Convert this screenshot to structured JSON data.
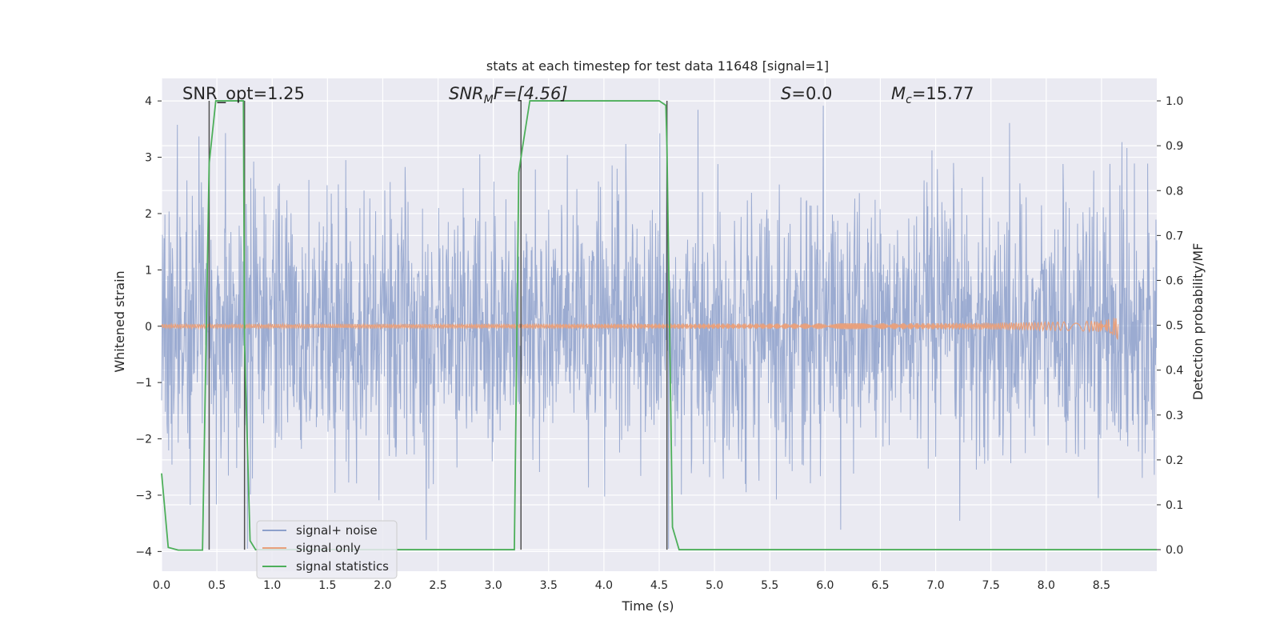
{
  "chart_data": {
    "type": "line",
    "title": "stats at each timestep for test data 11648 [signal=1]",
    "xlabel": "Time (s)",
    "ylabel": "Whitened strain",
    "y2label": "Detection probability/MF",
    "xlim": [
      0.0,
      9.0
    ],
    "ylim": [
      -4.35,
      4.4
    ],
    "y2lim": [
      -0.048,
      1.05
    ],
    "xticks": [
      "0.0",
      "0.5",
      "1.0",
      "1.5",
      "2.0",
      "2.5",
      "3.0",
      "3.5",
      "4.0",
      "4.5",
      "5.0",
      "5.5",
      "6.0",
      "6.5",
      "7.0",
      "7.5",
      "8.0",
      "8.5"
    ],
    "yticks": [
      "4",
      "3",
      "2",
      "1",
      "0",
      "−1",
      "−2",
      "−3",
      "−4"
    ],
    "y2ticks": [
      "1.0",
      "0.9",
      "0.8",
      "0.7",
      "0.6",
      "0.5",
      "0.4",
      "0.3",
      "0.2",
      "0.1",
      "0.0"
    ],
    "grid": true,
    "legend_position": "lower-left",
    "annotations": {
      "snr_opt": "SNR_opt=1.25",
      "snr_mf": "SNR",
      "snr_mf_sub": "M",
      "snr_mf_rest": "F=[4.56]",
      "s_stat": "S",
      "s_stat_rest": "=0.0",
      "mc": "M",
      "mc_sub": "c",
      "mc_rest": "=15.77"
    },
    "series": [
      {
        "name": "signal+ noise",
        "color": "#8da0cb",
        "description_values": "whitened strain noise, approx within ±2.3 with spikes to ±4"
      },
      {
        "name": "signal only",
        "color": "#e8a07c",
        "chirp_end_time": 8.65,
        "chirp_peak_amplitude": 0.35
      },
      {
        "name": "signal statistics",
        "color": "#4daf5a",
        "axis": "right",
        "x": [
          0.0,
          0.06,
          0.15,
          0.37,
          0.43,
          0.49,
          0.54,
          0.7,
          0.74,
          0.75,
          0.8,
          0.85,
          0.9,
          1.5,
          2.5,
          3.19,
          3.23,
          3.26,
          3.33,
          3.4,
          4.0,
          4.5,
          4.56,
          4.57,
          4.62,
          4.68,
          4.75,
          5.0,
          6.0,
          7.0,
          8.0,
          9.0
        ],
        "y": [
          0.17,
          0.005,
          -0.001,
          -0.001,
          0.86,
          1.0,
          1.0,
          1.0,
          1.0,
          0.46,
          0.02,
          0.0,
          0.0,
          0.0,
          0.0,
          0.0,
          0.84,
          0.89,
          1.0,
          1.0,
          1.0,
          1.0,
          0.99,
          0.9,
          0.05,
          0.0,
          0.0,
          0.0,
          0.0,
          0.0,
          0.0,
          0.0
        ]
      }
    ],
    "vertical_lines": [
      0.43,
      0.75,
      3.25,
      4.57
    ],
    "vertical_line_color": "#505050"
  }
}
